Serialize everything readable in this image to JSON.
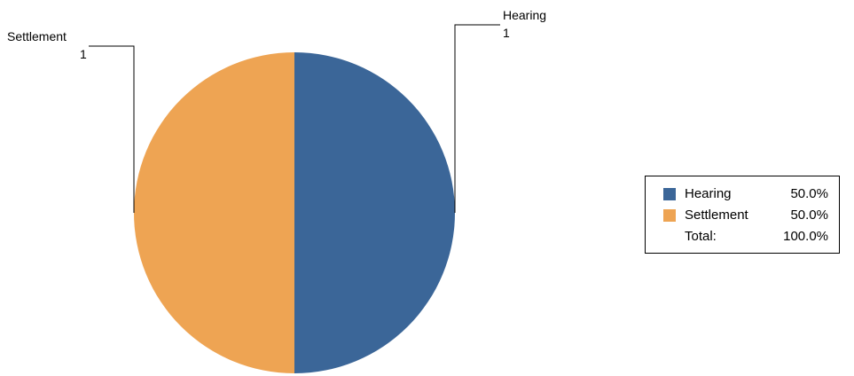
{
  "chart_data": {
    "type": "pie",
    "slices": [
      {
        "name": "Hearing",
        "value": 1,
        "percent_label": "50.0%",
        "color": "#3b6698"
      },
      {
        "name": "Settlement",
        "value": 1,
        "percent_label": "50.0%",
        "color": "#eea453"
      }
    ],
    "total": {
      "label": "Total:",
      "percent_label": "100.0%"
    },
    "legend_position": "right"
  }
}
